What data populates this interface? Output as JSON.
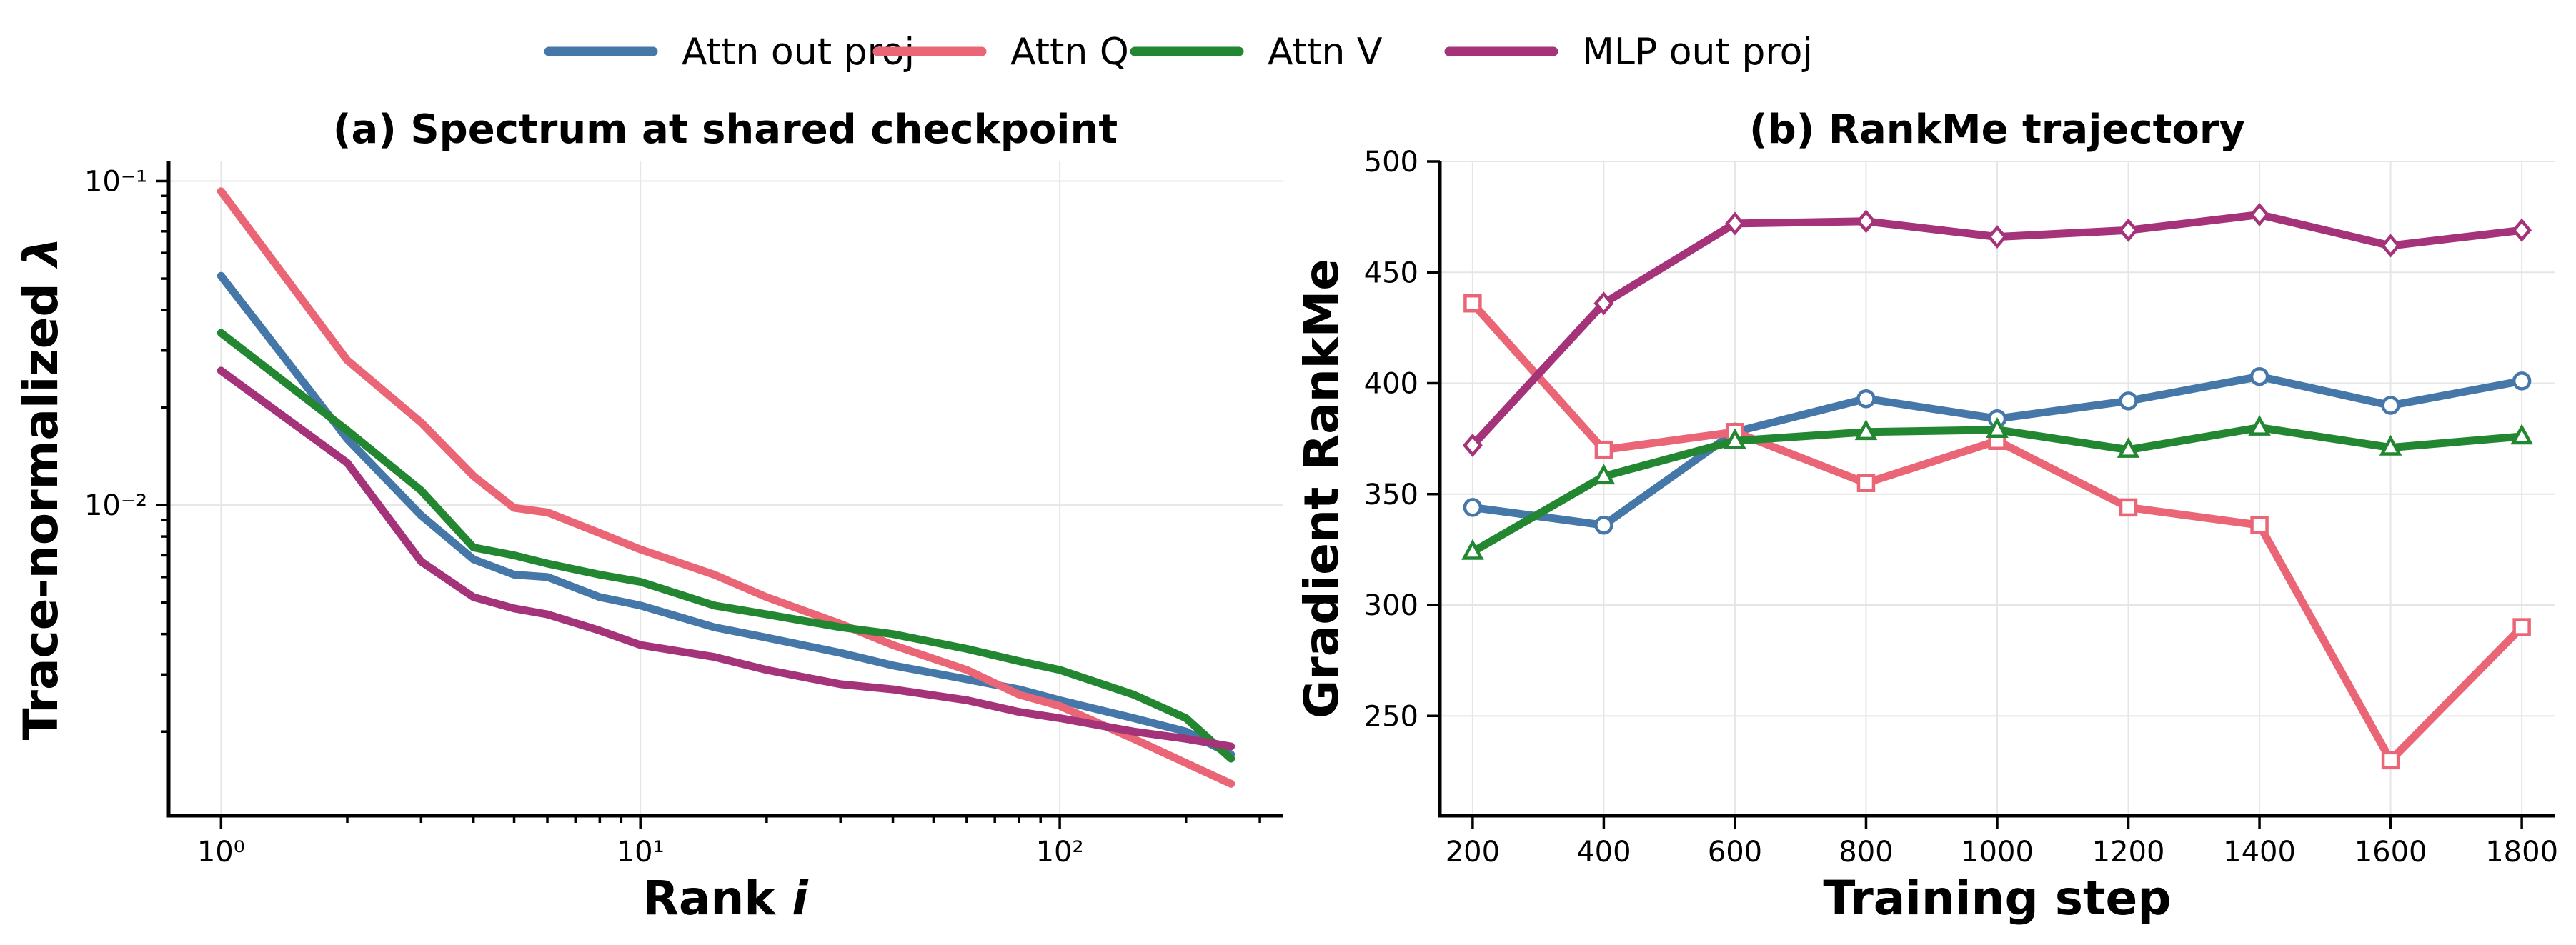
{
  "legend": {
    "placement": "top-center",
    "entries": [
      {
        "name": "Attn out proj",
        "color": "#4677a9"
      },
      {
        "name": "Attn Q",
        "color": "#ea6676"
      },
      {
        "name": "Attn V",
        "color": "#238731"
      },
      {
        "name": "MLP out proj",
        "color": "#a4337a"
      }
    ]
  },
  "chart_data": [
    {
      "type": "line",
      "title": "(a) Spectrum at shared checkpoint",
      "xlabel": "Rank i",
      "ylabel": "Trace-normalized λ",
      "xscale": "log",
      "yscale": "log",
      "xlim": [
        0.75,
        340
      ],
      "ylim": [
        0.0011,
        0.115
      ],
      "xticks": [
        {
          "value": 1,
          "label": "10⁰"
        },
        {
          "value": 10,
          "label": "10¹"
        },
        {
          "value": 100,
          "label": "10²"
        }
      ],
      "yticks": [
        {
          "value": 0.01,
          "label": "10⁻²"
        },
        {
          "value": 0.1,
          "label": "10⁻¹"
        }
      ],
      "grid": true,
      "series": [
        {
          "name": "Attn out proj",
          "color": "#4677a9",
          "x": [
            1,
            2,
            3,
            4,
            5,
            6,
            8,
            10,
            15,
            20,
            30,
            40,
            60,
            80,
            100,
            150,
            200,
            256
          ],
          "y": [
            0.051,
            0.016,
            0.0093,
            0.0068,
            0.0061,
            0.006,
            0.0052,
            0.0049,
            0.0042,
            0.0039,
            0.0035,
            0.0032,
            0.0029,
            0.0027,
            0.0025,
            0.0022,
            0.002,
            0.0017
          ]
        },
        {
          "name": "Attn Q",
          "color": "#ea6676",
          "x": [
            1,
            2,
            3,
            4,
            5,
            6,
            8,
            10,
            15,
            20,
            30,
            40,
            60,
            80,
            100,
            150,
            200,
            256
          ],
          "y": [
            0.093,
            0.028,
            0.018,
            0.0123,
            0.0098,
            0.0095,
            0.0082,
            0.0073,
            0.0061,
            0.0052,
            0.0043,
            0.0037,
            0.0031,
            0.0026,
            0.0024,
            0.0019,
            0.0016,
            0.00138
          ]
        },
        {
          "name": "Attn V",
          "color": "#238731",
          "x": [
            1,
            2,
            3,
            4,
            5,
            6,
            8,
            10,
            15,
            20,
            30,
            40,
            60,
            80,
            100,
            150,
            200,
            256
          ],
          "y": [
            0.034,
            0.017,
            0.0111,
            0.0074,
            0.007,
            0.0066,
            0.0061,
            0.0058,
            0.0049,
            0.0046,
            0.0042,
            0.004,
            0.0036,
            0.0033,
            0.0031,
            0.0026,
            0.0022,
            0.00165
          ]
        },
        {
          "name": "MLP out proj",
          "color": "#a4337a",
          "x": [
            1,
            2,
            3,
            4,
            5,
            6,
            8,
            10,
            15,
            20,
            30,
            40,
            60,
            80,
            100,
            150,
            200,
            256
          ],
          "y": [
            0.026,
            0.0135,
            0.0067,
            0.0052,
            0.0048,
            0.0046,
            0.0041,
            0.0037,
            0.0034,
            0.0031,
            0.0028,
            0.0027,
            0.0025,
            0.0023,
            0.0022,
            0.002,
            0.0019,
            0.0018
          ]
        }
      ]
    },
    {
      "type": "line",
      "title": "(b) RankMe trajectory",
      "xlabel": "Training step",
      "ylabel": "Gradient RankMe",
      "xlim": [
        150,
        1850
      ],
      "ylim": [
        205,
        500
      ],
      "xticks": [
        200,
        400,
        600,
        800,
        1000,
        1200,
        1400,
        1600,
        1800
      ],
      "yticks": [
        250,
        300,
        350,
        400,
        450,
        500
      ],
      "grid": true,
      "x": [
        200,
        400,
        600,
        800,
        1000,
        1200,
        1400,
        1600,
        1800
      ],
      "series": [
        {
          "name": "Attn out proj",
          "color": "#4677a9",
          "marker": "circle",
          "values": [
            344,
            336,
            378,
            393,
            384,
            392,
            403,
            390,
            401
          ]
        },
        {
          "name": "Attn Q",
          "color": "#ea6676",
          "marker": "square",
          "values": [
            436,
            370,
            378,
            355,
            374,
            344,
            336,
            230,
            290
          ]
        },
        {
          "name": "Attn V",
          "color": "#238731",
          "marker": "triangle",
          "values": [
            324,
            358,
            374,
            378,
            379,
            370,
            380,
            371,
            376
          ]
        },
        {
          "name": "MLP out proj",
          "color": "#a4337a",
          "marker": "diamond",
          "values": [
            372,
            436,
            472,
            473,
            466,
            469,
            476,
            462,
            469
          ]
        }
      ]
    }
  ]
}
